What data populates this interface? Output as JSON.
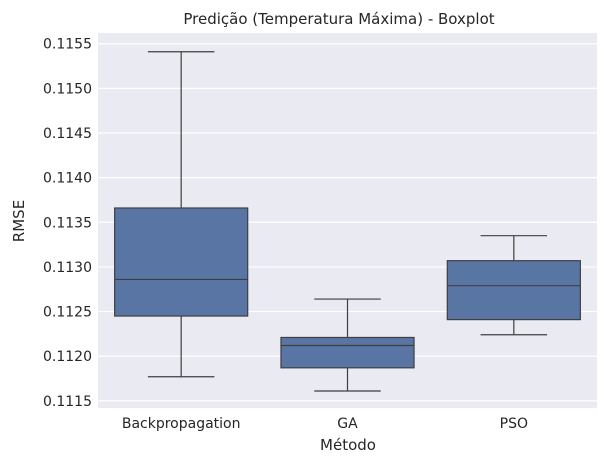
{
  "chart_data": {
    "type": "boxplot",
    "title": "Predição (Temperatura Máxima) - Boxplot",
    "xlabel": "Método",
    "ylabel": "RMSE",
    "categories": [
      "Backpropagation",
      "GA",
      "PSO"
    ],
    "boxes": [
      {
        "category": "Backpropagation",
        "whisker_low": 0.11177,
        "q1": 0.11245,
        "median": 0.11286,
        "q3": 0.11366,
        "whisker_high": 0.11541
      },
      {
        "category": "GA",
        "whisker_low": 0.11161,
        "q1": 0.11187,
        "median": 0.11212,
        "q3": 0.11221,
        "whisker_high": 0.11264
      },
      {
        "category": "PSO",
        "whisker_low": 0.11224,
        "q1": 0.11241,
        "median": 0.11279,
        "q3": 0.11307,
        "whisker_high": 0.11335
      }
    ],
    "yticks": [
      "0.1115",
      "0.1120",
      "0.1125",
      "0.1130",
      "0.1135",
      "0.1140",
      "0.1145",
      "0.1150",
      "0.1155"
    ],
    "ylim": [
      0.11142,
      0.11562
    ],
    "grid": true,
    "colors": {
      "plot_background": "#eaeaf2",
      "grid": "#ffffff",
      "box_fill": "#5975a4",
      "line": "#3f3f3f"
    }
  }
}
